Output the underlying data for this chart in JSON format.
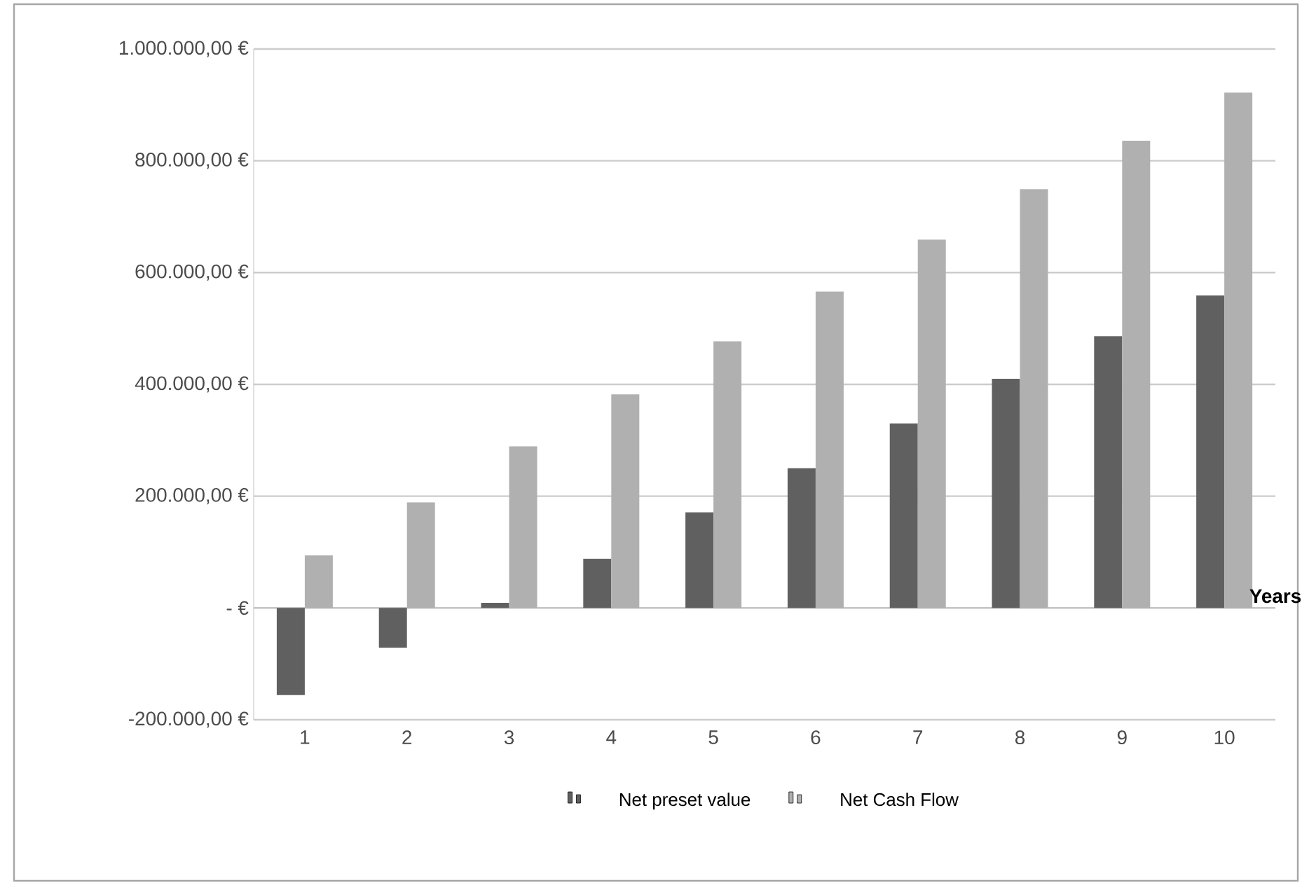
{
  "chart_data": {
    "type": "bar",
    "xlabel": "Years",
    "categories": [
      "1",
      "2",
      "3",
      "4",
      "5",
      "6",
      "7",
      "8",
      "9",
      "10"
    ],
    "series": [
      {
        "name": "Net preset value",
        "color": "#606060",
        "values": [
          -156000,
          -71000,
          9000,
          88000,
          171000,
          250000,
          330000,
          410000,
          486000,
          559000
        ]
      },
      {
        "name": "Net Cash Flow",
        "color": "#b0b0b0",
        "values": [
          94000,
          189000,
          289000,
          382000,
          477000,
          566000,
          659000,
          749000,
          836000,
          922000
        ]
      }
    ],
    "ylim": [
      -200000,
      1000000
    ],
    "yticks": [
      {
        "value": -200000,
        "label": "-200.000,00 €"
      },
      {
        "value": 0,
        "label": "-   €"
      },
      {
        "value": 200000,
        "label": "200.000,00 €"
      },
      {
        "value": 400000,
        "label": "400.000,00 €"
      },
      {
        "value": 600000,
        "label": "600.000,00 €"
      },
      {
        "value": 800000,
        "label": "800.000,00 €"
      },
      {
        "value": 1000000,
        "label": "1.000.000,00 €"
      }
    ],
    "grid": "y",
    "legend": "bottom"
  }
}
